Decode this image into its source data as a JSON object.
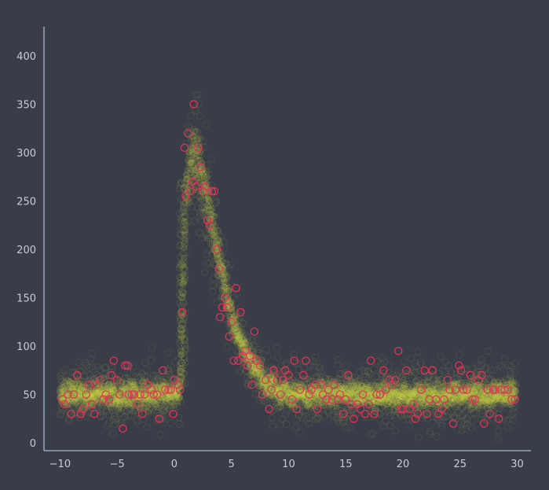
{
  "chart_data": {
    "type": "scatter",
    "title": "",
    "xlabel": "",
    "ylabel": "",
    "xlim": [
      -11.4,
      31.2
    ],
    "ylim": [
      -8,
      430
    ],
    "x_ticks": [
      -10,
      -5,
      0,
      5,
      10,
      15,
      20,
      25,
      30
    ],
    "x_tick_labels": [
      "−10",
      "−5",
      "0",
      "5",
      "10",
      "15",
      "20",
      "25",
      "30"
    ],
    "y_ticks": [
      0,
      50,
      100,
      150,
      200,
      250,
      300,
      350,
      400
    ],
    "y_tick_labels": [
      "0",
      "50",
      "100",
      "150",
      "200",
      "250",
      "300",
      "350",
      "400"
    ],
    "grid": false,
    "colors": {
      "background": "#393d47",
      "axis": "#aab8d0",
      "tick_label": "#c8ccd6",
      "band_fill": "#d8e043",
      "band_edge": "#8a8f5a",
      "observed": "#e0345a"
    },
    "series": [
      {
        "role": "posterior-samples-band",
        "marker": "open-circle",
        "x": [
          -10,
          -9,
          -8,
          -7,
          -6,
          -5,
          -4,
          -3,
          -2,
          -1,
          0,
          0.5,
          1,
          1.5,
          2,
          2.5,
          3,
          3.5,
          4,
          4.5,
          5,
          5.5,
          6,
          6.5,
          7,
          7.5,
          8,
          9,
          10,
          12,
          15,
          18,
          20,
          22,
          25,
          27,
          29.5
        ],
        "y_center": [
          50,
          50,
          50,
          50,
          50,
          50,
          50,
          50,
          50,
          50,
          52,
          55,
          250,
          300,
          290,
          270,
          245,
          215,
          185,
          160,
          135,
          115,
          100,
          88,
          78,
          70,
          62,
          55,
          52,
          50,
          50,
          50,
          50,
          50,
          50,
          50,
          50
        ]
      },
      {
        "role": "observed",
        "marker": "open-circle",
        "points": [
          [
            -9.8,
            45
          ],
          [
            -9.6,
            40
          ],
          [
            -9.3,
            50
          ],
          [
            -9,
            30
          ],
          [
            -8.8,
            50
          ],
          [
            -8.5,
            70
          ],
          [
            -8.2,
            30
          ],
          [
            -8,
            35
          ],
          [
            -7.7,
            50
          ],
          [
            -7.5,
            60
          ],
          [
            -7.2,
            40
          ],
          [
            -7,
            30
          ],
          [
            -6.8,
            60
          ],
          [
            -6.5,
            65
          ],
          [
            -6.2,
            45
          ],
          [
            -6,
            50
          ],
          [
            -5.7,
            45
          ],
          [
            -5.5,
            70
          ],
          [
            -5.3,
            85
          ],
          [
            -5,
            65
          ],
          [
            -4.8,
            50
          ],
          [
            -4.5,
            15
          ],
          [
            -4.3,
            80
          ],
          [
            -4.1,
            80
          ],
          [
            -4,
            50
          ],
          [
            -3.7,
            50
          ],
          [
            -3.5,
            50
          ],
          [
            -3.2,
            40
          ],
          [
            -3,
            50
          ],
          [
            -2.8,
            30
          ],
          [
            -2.6,
            50
          ],
          [
            -2.3,
            60
          ],
          [
            -2,
            55
          ],
          [
            -1.8,
            50
          ],
          [
            -1.5,
            50
          ],
          [
            -1.3,
            25
          ],
          [
            -1,
            75
          ],
          [
            -0.8,
            55
          ],
          [
            -0.5,
            55
          ],
          [
            -0.3,
            55
          ],
          [
            -0.1,
            30
          ],
          [
            0,
            65
          ],
          [
            0.3,
            60
          ],
          [
            0.5,
            55
          ],
          [
            0.7,
            135
          ],
          [
            0.9,
            305
          ],
          [
            1,
            255
          ],
          [
            1.2,
            320
          ],
          [
            1.4,
            260
          ],
          [
            1.6,
            270
          ],
          [
            1.7,
            350
          ],
          [
            1.9,
            265
          ],
          [
            2.1,
            305
          ],
          [
            2.3,
            285
          ],
          [
            2.5,
            260
          ],
          [
            2.7,
            265
          ],
          [
            2.9,
            230
          ],
          [
            3.1,
            225
          ],
          [
            3.3,
            260
          ],
          [
            3.5,
            260
          ],
          [
            3.7,
            200
          ],
          [
            3.9,
            180
          ],
          [
            4,
            130
          ],
          [
            4.2,
            140
          ],
          [
            4.4,
            150
          ],
          [
            4.6,
            140
          ],
          [
            4.8,
            110
          ],
          [
            5,
            125
          ],
          [
            5.2,
            85
          ],
          [
            5.4,
            160
          ],
          [
            5.6,
            85
          ],
          [
            5.8,
            135
          ],
          [
            6,
            90
          ],
          [
            6.2,
            95
          ],
          [
            6.4,
            80
          ],
          [
            6.6,
            90
          ],
          [
            6.8,
            60
          ],
          [
            7,
            115
          ],
          [
            7.2,
            85
          ],
          [
            7.5,
            80
          ],
          [
            7.7,
            50
          ],
          [
            8,
            65
          ],
          [
            8.3,
            35
          ],
          [
            8.5,
            55
          ],
          [
            8.7,
            75
          ],
          [
            9,
            65
          ],
          [
            9.3,
            50
          ],
          [
            9.5,
            65
          ],
          [
            9.7,
            75
          ],
          [
            10,
            70
          ],
          [
            10.3,
            45
          ],
          [
            10.5,
            85
          ],
          [
            10.7,
            35
          ],
          [
            11,
            55
          ],
          [
            11.3,
            70
          ],
          [
            11.5,
            85
          ],
          [
            11.8,
            50
          ],
          [
            12,
            55
          ],
          [
            12.3,
            60
          ],
          [
            12.5,
            35
          ],
          [
            12.8,
            60
          ],
          [
            13,
            50
          ],
          [
            13.3,
            45
          ],
          [
            13.5,
            55
          ],
          [
            13.8,
            45
          ],
          [
            14,
            60
          ],
          [
            14.3,
            45
          ],
          [
            14.5,
            50
          ],
          [
            14.8,
            30
          ],
          [
            15,
            45
          ],
          [
            15.2,
            70
          ],
          [
            15.5,
            40
          ],
          [
            15.7,
            25
          ],
          [
            16,
            40
          ],
          [
            16.3,
            35
          ],
          [
            16.5,
            50
          ],
          [
            16.7,
            30
          ],
          [
            17,
            40
          ],
          [
            17.2,
            85
          ],
          [
            17.5,
            30
          ],
          [
            17.7,
            50
          ],
          [
            18,
            50
          ],
          [
            18.3,
            75
          ],
          [
            18.5,
            55
          ],
          [
            18.8,
            65
          ],
          [
            19,
            60
          ],
          [
            19.3,
            65
          ],
          [
            19.6,
            95
          ],
          [
            19.8,
            35
          ],
          [
            20,
            35
          ],
          [
            20.3,
            75
          ],
          [
            20.6,
            35
          ],
          [
            20.9,
            40
          ],
          [
            21.1,
            25
          ],
          [
            21.3,
            30
          ],
          [
            21.6,
            55
          ],
          [
            21.9,
            75
          ],
          [
            22.1,
            30
          ],
          [
            22.3,
            45
          ],
          [
            22.6,
            75
          ],
          [
            22.9,
            45
          ],
          [
            23.1,
            30
          ],
          [
            23.4,
            35
          ],
          [
            23.6,
            45
          ],
          [
            23.9,
            65
          ],
          [
            24.1,
            55
          ],
          [
            24.4,
            20
          ],
          [
            24.6,
            55
          ],
          [
            24.9,
            80
          ],
          [
            25.1,
            75
          ],
          [
            25.3,
            55
          ],
          [
            25.6,
            55
          ],
          [
            25.9,
            70
          ],
          [
            26.1,
            45
          ],
          [
            26.3,
            45
          ],
          [
            26.6,
            65
          ],
          [
            26.9,
            70
          ],
          [
            27.1,
            20
          ],
          [
            27.4,
            55
          ],
          [
            27.6,
            30
          ],
          [
            27.9,
            55
          ],
          [
            28.1,
            55
          ],
          [
            28.4,
            25
          ],
          [
            28.6,
            55
          ],
          [
            28.9,
            55
          ],
          [
            29.2,
            55
          ],
          [
            29.5,
            45
          ],
          [
            29.8,
            45
          ]
        ]
      }
    ]
  }
}
